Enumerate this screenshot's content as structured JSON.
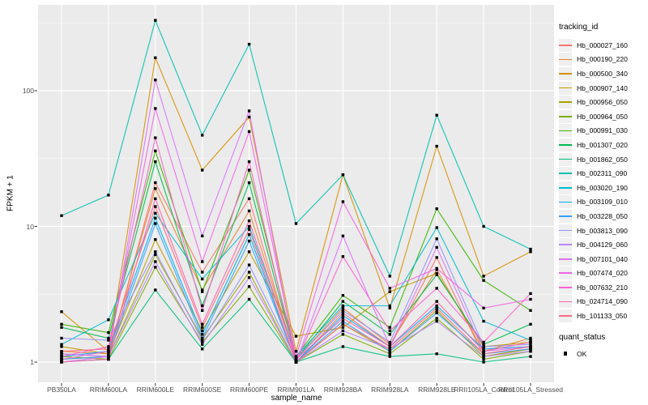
{
  "chart_data": {
    "type": "line",
    "title": "",
    "xlabel": "sample_name",
    "ylabel": "FPKM + 1",
    "y_scale": "log10",
    "ylim": [
      0.95,
      400
    ],
    "grid": true,
    "panel_background": "#EBEBEB",
    "gridline_color": "#FFFFFF",
    "y_tick_labels": [
      "1",
      "10",
      "100"
    ],
    "y_tick_values": [
      1,
      10,
      100
    ],
    "y_minor_values": [
      3.162,
      31.62,
      316.2
    ],
    "legend_title": "tracking_id",
    "legend_position": "right",
    "marker": "black-square",
    "quant_legend": {
      "title": "quant_status",
      "items": [
        {
          "label": "OK"
        }
      ]
    },
    "categories": [
      "PB350LA",
      "RRIM600LA",
      "RRIM600LE",
      "RRIM600SE",
      "RRIM600PE",
      "RRIM901LA",
      "RRIM928BA",
      "RRIM928LA",
      "RRIM928LE",
      "RRII105LA_Control",
      "RRII105LA_Stressed"
    ],
    "series": [
      {
        "name": "Hb_000027_160",
        "color": "#F8766D",
        "values": [
          1.15,
          1.1,
          21,
          4.6,
          16,
          1.0,
          2.3,
          1.3,
          5.9,
          1.1,
          1.25
        ]
      },
      {
        "name": "Hb_000190_220",
        "color": "#EA8331",
        "values": [
          1.2,
          1.15,
          19,
          3.4,
          13,
          1.05,
          2.5,
          1.35,
          4.8,
          1.2,
          1.5
        ]
      },
      {
        "name": "Hb_000500_340",
        "color": "#D89000",
        "values": [
          2.35,
          1.2,
          175,
          26,
          64,
          1.2,
          24,
          2.5,
          39,
          4.3,
          6.5
        ]
      },
      {
        "name": "Hb_000907_140",
        "color": "#C09B00",
        "values": [
          1.3,
          1.15,
          8.0,
          1.7,
          6.5,
          1.55,
          1.8,
          3.3,
          4.5,
          1.3,
          1.4
        ]
      },
      {
        "name": "Hb_000956_050",
        "color": "#A3A500",
        "values": [
          1.05,
          1.1,
          6.2,
          1.5,
          4.6,
          1.0,
          1.9,
          1.2,
          2.4,
          1.1,
          1.25
        ]
      },
      {
        "name": "Hb_000964_050",
        "color": "#7CAE00",
        "values": [
          1.1,
          1.05,
          5.0,
          1.4,
          3.6,
          1.0,
          1.6,
          1.15,
          2.1,
          1.05,
          1.2
        ]
      },
      {
        "name": "Hb_000991_030",
        "color": "#39B600",
        "values": [
          1.9,
          1.65,
          36,
          3.3,
          26,
          1.1,
          3.1,
          1.8,
          13.5,
          4.0,
          2.4
        ]
      },
      {
        "name": "Hb_001307_020",
        "color": "#00BB4E",
        "values": [
          1.8,
          1.5,
          30,
          2.6,
          21,
          1.05,
          2.8,
          1.6,
          4.4,
          1.35,
          1.9
        ]
      },
      {
        "name": "Hb_001862_050",
        "color": "#00BF7D",
        "values": [
          1.0,
          1.05,
          3.4,
          1.25,
          2.9,
          1.0,
          1.3,
          1.1,
          1.15,
          1.0,
          1.1
        ]
      },
      {
        "name": "Hb_002311_090",
        "color": "#00C0AF",
        "values": [
          12,
          17,
          330,
          47,
          220,
          10.5,
          24,
          4.3,
          66,
          10,
          6.8
        ]
      },
      {
        "name": "Hb_003020_190",
        "color": "#00BCD8",
        "values": [
          1.35,
          2.05,
          12.5,
          4.1,
          10,
          1.1,
          2.6,
          2.6,
          9.8,
          2.0,
          1.45
        ]
      },
      {
        "name": "Hb_003109_010",
        "color": "#00B0F6",
        "values": [
          1.1,
          1.2,
          11.5,
          1.6,
          8.7,
          1.0,
          2.2,
          1.3,
          2.6,
          1.25,
          1.3
        ]
      },
      {
        "name": "Hb_003228_050",
        "color": "#35A2FF",
        "values": [
          1.05,
          1.1,
          10.5,
          1.5,
          7.8,
          1.0,
          2.0,
          1.2,
          2.3,
          1.15,
          1.25
        ]
      },
      {
        "name": "Hb_003813_090",
        "color": "#9590FF",
        "values": [
          1.5,
          1.45,
          6.5,
          1.45,
          5.2,
          1.05,
          2.4,
          1.4,
          8.1,
          1.3,
          1.35
        ]
      },
      {
        "name": "Hb_004129_060",
        "color": "#B983FF",
        "values": [
          1.15,
          1.1,
          5.5,
          1.35,
          4.2,
          1.0,
          1.7,
          1.25,
          2.0,
          1.1,
          1.2
        ]
      },
      {
        "name": "Hb_007101_040",
        "color": "#DB72FB",
        "values": [
          1.0,
          1.1,
          120,
          8.5,
          71,
          1.0,
          8.5,
          1.3,
          7.0,
          1.2,
          1.3
        ]
      },
      {
        "name": "Hb_007474_020",
        "color": "#F265E6",
        "values": [
          1.05,
          1.2,
          74,
          5.5,
          50,
          1.1,
          15.2,
          3.5,
          4.9,
          2.5,
          2.9
        ]
      },
      {
        "name": "Hb_007632_210",
        "color": "#FC61CD",
        "values": [
          1.1,
          1.3,
          45,
          2.4,
          30,
          1.0,
          6.0,
          1.7,
          3.5,
          1.4,
          3.2
        ]
      },
      {
        "name": "Hb_024714_090",
        "color": "#FF62A9",
        "values": [
          1.0,
          1.05,
          16,
          1.9,
          11,
          1.05,
          2.1,
          1.3,
          2.8,
          1.2,
          1.4
        ]
      },
      {
        "name": "Hb_101133_050",
        "color": "#FF6B84",
        "values": [
          1.2,
          1.25,
          14,
          1.8,
          9.5,
          1.0,
          1.9,
          1.25,
          2.5,
          1.15,
          1.3
        ]
      }
    ]
  }
}
